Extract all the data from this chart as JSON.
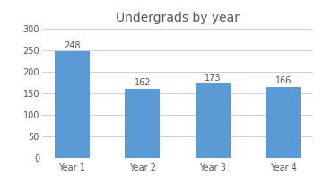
{
  "title": "Undergrads by year",
  "categories": [
    "Year 1",
    "Year 2",
    "Year 3",
    "Year 4"
  ],
  "values": [
    248,
    162,
    173,
    166
  ],
  "bar_color": "#5B9BD5",
  "ylim": [
    0,
    300
  ],
  "yticks": [
    0,
    50,
    100,
    150,
    200,
    250,
    300
  ],
  "title_fontsize": 10,
  "annotation_fontsize": 7,
  "tick_fontsize": 7,
  "background_color": "#ffffff",
  "grid_color": "#c8c8c8",
  "bar_width": 0.5
}
